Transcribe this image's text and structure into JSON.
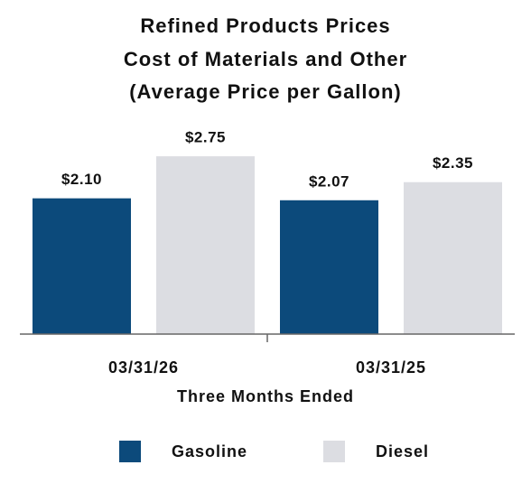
{
  "chart_data": {
    "type": "bar",
    "title": [
      "Refined Products Prices",
      "Cost of Materials and Other",
      "(Average Price per Gallon)"
    ],
    "x_label": "Three Months Ended",
    "categories": [
      "03/31/26",
      "03/31/25"
    ],
    "series": [
      {
        "name": "Gasoline",
        "color": "#0c4a7b",
        "values": [
          2.1,
          2.07
        ],
        "value_labels": [
          "$2.10",
          "$2.07"
        ]
      },
      {
        "name": "Diesel",
        "color": "#dcdde2",
        "values": [
          2.75,
          2.35
        ],
        "value_labels": [
          "$2.75",
          "$2.35"
        ]
      }
    ],
    "legend": "bottom"
  }
}
